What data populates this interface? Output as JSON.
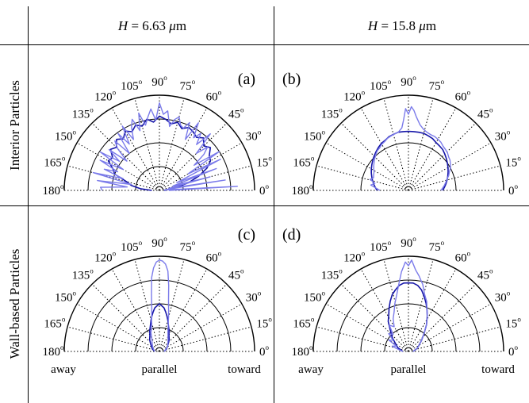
{
  "header": {
    "col1": {
      "prefix": "H",
      "value": " = 6.63 ",
      "unit_mu": "μ",
      "unit_m": "m"
    },
    "col2": {
      "prefix": "H",
      "value": " = 15.8 ",
      "unit_mu": "μ",
      "unit_m": "m"
    }
  },
  "rows": [
    {
      "label": "Interior Particles"
    },
    {
      "label": "Wall-based Particles"
    }
  ],
  "bottom_labels": [
    {
      "away": "away",
      "parallel": "parallel",
      "toward": "toward"
    },
    {
      "away": "away",
      "parallel": "parallel",
      "toward": "toward"
    }
  ],
  "angle_unit": "o",
  "colors": {
    "dark_series": "#1515a8",
    "light_series": "#7b7bea",
    "grid": "#000000"
  },
  "chart_data": [
    {
      "type": "polar-line",
      "panel_label": "(a)",
      "angle_ticks": [
        0,
        15,
        30,
        45,
        60,
        75,
        90,
        105,
        120,
        135,
        150,
        165,
        180
      ],
      "angle_range": [
        0,
        180
      ],
      "radial_rings": 4,
      "radial_grid_style": "solid",
      "angular_grid_style": "dotted",
      "series": [
        {
          "style": "dark",
          "theta": [
            0,
            5,
            10,
            15,
            20,
            25,
            30,
            35,
            40,
            45,
            50,
            55,
            60,
            65,
            70,
            75,
            80,
            85,
            90,
            95,
            100,
            105,
            110,
            115,
            120,
            125,
            130,
            135,
            140,
            145,
            150,
            155,
            160,
            165,
            170,
            175,
            180
          ],
          "r": [
            0.05,
            0.08,
            0.18,
            0.32,
            0.44,
            0.55,
            0.62,
            0.64,
            0.7,
            0.66,
            0.72,
            0.68,
            0.71,
            0.73,
            0.69,
            0.74,
            0.71,
            0.75,
            0.78,
            0.72,
            0.76,
            0.7,
            0.73,
            0.68,
            0.72,
            0.66,
            0.7,
            0.64,
            0.67,
            0.6,
            0.62,
            0.54,
            0.5,
            0.36,
            0.3,
            0.2,
            0.08
          ]
        },
        {
          "style": "light",
          "theta": [
            0,
            3,
            6,
            9,
            12,
            15,
            18,
            21,
            24,
            27,
            30,
            33,
            36,
            39,
            42,
            45,
            48,
            51,
            54,
            57,
            60,
            63,
            66,
            69,
            72,
            75,
            78,
            81,
            84,
            87,
            90,
            93,
            96,
            99,
            102,
            105,
            108,
            111,
            114,
            117,
            120,
            123,
            126,
            129,
            132,
            135,
            138,
            141,
            144,
            147,
            150,
            153,
            156,
            159,
            162,
            165,
            168,
            171,
            174,
            177,
            180
          ],
          "r": [
            0.1,
            0.82,
            0.05,
            0.7,
            0.1,
            0.55,
            0.15,
            0.64,
            0.2,
            0.72,
            0.35,
            0.75,
            0.45,
            0.6,
            0.68,
            0.55,
            0.8,
            0.62,
            0.74,
            0.66,
            0.82,
            0.6,
            0.78,
            0.7,
            0.72,
            0.8,
            0.76,
            0.68,
            0.84,
            0.8,
            0.92,
            0.74,
            0.86,
            0.78,
            0.7,
            0.84,
            0.66,
            0.8,
            0.72,
            0.6,
            0.78,
            0.58,
            0.74,
            0.5,
            0.7,
            0.62,
            0.46,
            0.68,
            0.52,
            0.74,
            0.44,
            0.7,
            0.48,
            0.62,
            0.4,
            0.72,
            0.3,
            0.66,
            0.34,
            0.62,
            0.6
          ]
        }
      ]
    },
    {
      "type": "polar-line",
      "panel_label": "(b)",
      "angle_ticks": [
        0,
        15,
        30,
        45,
        60,
        75,
        90,
        105,
        120,
        135,
        150,
        165,
        180
      ],
      "angle_range": [
        0,
        180
      ],
      "radial_rings": 2,
      "radial_grid_style": "solid",
      "angular_grid_style": "dotted",
      "series": [
        {
          "style": "dark",
          "theta": [
            0,
            5,
            10,
            15,
            20,
            25,
            30,
            35,
            40,
            45,
            50,
            55,
            60,
            65,
            70,
            75,
            80,
            85,
            90,
            95,
            100,
            105,
            110,
            115,
            120,
            125,
            130,
            135,
            140,
            145,
            150,
            155,
            160,
            165,
            170,
            175,
            180
          ],
          "r": [
            0.36,
            0.38,
            0.4,
            0.42,
            0.44,
            0.46,
            0.48,
            0.5,
            0.52,
            0.54,
            0.56,
            0.57,
            0.58,
            0.6,
            0.61,
            0.62,
            0.62,
            0.62,
            0.62,
            0.62,
            0.62,
            0.61,
            0.6,
            0.58,
            0.57,
            0.55,
            0.53,
            0.51,
            0.49,
            0.47,
            0.45,
            0.43,
            0.41,
            0.39,
            0.37,
            0.35,
            0.33
          ]
        },
        {
          "style": "light",
          "theta": [
            0,
            4,
            8,
            12,
            16,
            20,
            24,
            28,
            32,
            36,
            40,
            44,
            48,
            52,
            56,
            60,
            64,
            68,
            72,
            76,
            80,
            84,
            86,
            88,
            90,
            92,
            94,
            96,
            100,
            104,
            108,
            112,
            116,
            120,
            124,
            128,
            132,
            136,
            140,
            144,
            148,
            152,
            156,
            160,
            164,
            168,
            172,
            176,
            180
          ],
          "r": [
            0.34,
            0.36,
            0.38,
            0.4,
            0.42,
            0.45,
            0.47,
            0.5,
            0.52,
            0.54,
            0.55,
            0.57,
            0.58,
            0.59,
            0.61,
            0.62,
            0.63,
            0.63,
            0.64,
            0.66,
            0.7,
            0.78,
            0.84,
            0.88,
            0.8,
            0.86,
            0.74,
            0.66,
            0.62,
            0.61,
            0.6,
            0.59,
            0.57,
            0.56,
            0.54,
            0.53,
            0.51,
            0.49,
            0.47,
            0.45,
            0.43,
            0.41,
            0.4,
            0.39,
            0.42,
            0.36,
            0.4,
            0.34,
            0.3
          ]
        }
      ]
    },
    {
      "type": "polar-line",
      "panel_label": "(c)",
      "angle_ticks": [
        0,
        15,
        30,
        45,
        60,
        75,
        90,
        105,
        120,
        135,
        150,
        165,
        180
      ],
      "angle_range": [
        0,
        180
      ],
      "radial_rings": 4,
      "radial_grid_style": "solid",
      "angular_grid_style": "dotted",
      "series": [
        {
          "style": "dark",
          "theta": [
            0,
            20,
            40,
            50,
            60,
            65,
            70,
            75,
            78,
            81,
            84,
            87,
            90,
            93,
            96,
            99,
            102,
            105,
            110,
            115,
            120,
            130,
            140,
            160,
            180
          ],
          "r": [
            0.05,
            0.08,
            0.12,
            0.16,
            0.2,
            0.24,
            0.28,
            0.34,
            0.38,
            0.42,
            0.46,
            0.48,
            0.5,
            0.48,
            0.46,
            0.42,
            0.38,
            0.34,
            0.28,
            0.24,
            0.2,
            0.16,
            0.12,
            0.08,
            0.05
          ]
        },
        {
          "style": "light",
          "theta": [
            0,
            30,
            50,
            60,
            66,
            72,
            76,
            80,
            82,
            84,
            86,
            88,
            90,
            92,
            94,
            96,
            98,
            100,
            104,
            108,
            114,
            120,
            130,
            150,
            180
          ],
          "r": [
            0.05,
            0.1,
            0.14,
            0.18,
            0.22,
            0.3,
            0.4,
            0.55,
            0.7,
            0.85,
            0.92,
            0.95,
            0.96,
            0.94,
            0.88,
            0.78,
            0.6,
            0.46,
            0.34,
            0.26,
            0.22,
            0.16,
            0.12,
            0.08,
            0.05
          ]
        }
      ]
    },
    {
      "type": "polar-line",
      "panel_label": "(d)",
      "angle_ticks": [
        0,
        15,
        30,
        45,
        60,
        75,
        90,
        105,
        120,
        135,
        150,
        165,
        180
      ],
      "angle_range": [
        0,
        180
      ],
      "radial_rings": 4,
      "radial_grid_style": "solid",
      "angular_grid_style": "dotted",
      "series": [
        {
          "style": "dark",
          "theta": [
            0,
            20,
            40,
            50,
            56,
            62,
            66,
            70,
            74,
            78,
            82,
            86,
            90,
            94,
            98,
            102,
            106,
            110,
            114,
            118,
            124,
            130,
            140,
            160,
            180
          ],
          "r": [
            0.05,
            0.1,
            0.18,
            0.26,
            0.34,
            0.42,
            0.48,
            0.54,
            0.6,
            0.66,
            0.7,
            0.72,
            0.72,
            0.72,
            0.7,
            0.66,
            0.62,
            0.56,
            0.5,
            0.44,
            0.38,
            0.3,
            0.22,
            0.12,
            0.06
          ]
        },
        {
          "style": "light",
          "theta": [
            0,
            20,
            40,
            50,
            56,
            62,
            66,
            70,
            74,
            78,
            82,
            85,
            88,
            90,
            92,
            95,
            98,
            102,
            106,
            110,
            115,
            120,
            126,
            132,
            138,
            144,
            150,
            156,
            162,
            170,
            180
          ],
          "r": [
            0.05,
            0.1,
            0.18,
            0.26,
            0.34,
            0.42,
            0.48,
            0.56,
            0.62,
            0.72,
            0.8,
            0.86,
            0.96,
            0.9,
            0.94,
            0.84,
            0.72,
            0.6,
            0.52,
            0.44,
            0.38,
            0.3,
            0.34,
            0.24,
            0.28,
            0.2,
            0.24,
            0.14,
            0.18,
            0.1,
            0.06
          ]
        }
      ]
    }
  ]
}
